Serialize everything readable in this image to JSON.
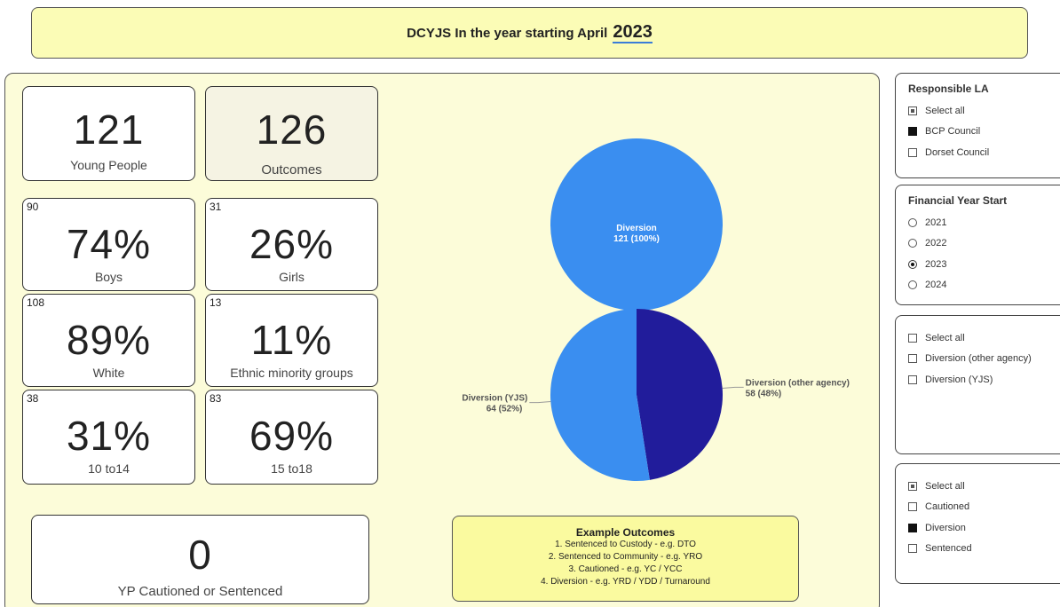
{
  "header": {
    "title": "DCYJS In the year starting April",
    "year": "2023"
  },
  "cards": [
    {
      "value": "121",
      "label": "Young People"
    },
    {
      "value": "126",
      "label": "Outcomes"
    }
  ],
  "split_cards": [
    {
      "count": "90",
      "percent": "74%",
      "label": "Boys"
    },
    {
      "count": "31",
      "percent": "26%",
      "label": "Girls"
    },
    {
      "count": "108",
      "percent": "89%",
      "label": "White"
    },
    {
      "count": "13",
      "percent": "11%",
      "label": "Ethnic minority groups"
    },
    {
      "count": "38",
      "percent": "31%",
      "label": "10 to14"
    },
    {
      "count": "83",
      "percent": "69%",
      "label": "15 to18"
    }
  ],
  "bottom_card": {
    "value": "0",
    "label": "YP Cautioned or Sentenced"
  },
  "pies": [
    {
      "type": "pie",
      "categories": [
        "Diversion"
      ],
      "values": [
        121
      ],
      "value_labels": [
        "121 (100%)"
      ],
      "colors": [
        "#3a8ef0"
      ]
    },
    {
      "type": "pie",
      "categories": [
        "Diversion (other agency)",
        "Diversion (YJS)"
      ],
      "values": [
        58,
        64
      ],
      "value_labels": [
        "58 (48%)",
        "64 (52%)"
      ],
      "colors": [
        "#211c9b",
        "#3a8ef0"
      ]
    }
  ],
  "example_outcomes": {
    "title": "Example Outcomes",
    "items": [
      "1. Sentenced to Custody - e.g. DTO",
      "2. Sentenced to Community - e.g. YRO",
      "3. Cautioned - e.g. YC / YCC",
      "4. Diversion - e.g. YRD / YDD / Turnaround"
    ]
  },
  "slicers": [
    {
      "title": "Responsible LA",
      "kind": "checkbox",
      "items": [
        {
          "label": "Select all",
          "state": "partial"
        },
        {
          "label": "BCP Council",
          "state": "on"
        },
        {
          "label": "Dorset Council",
          "state": "off"
        }
      ]
    },
    {
      "title": "Financial Year Start",
      "kind": "radio",
      "items": [
        {
          "label": "2021",
          "state": "off"
        },
        {
          "label": "2022",
          "state": "off"
        },
        {
          "label": "2023",
          "state": "on"
        },
        {
          "label": "2024",
          "state": "off"
        }
      ]
    },
    {
      "kind": "checkbox",
      "items": [
        {
          "label": "Select all",
          "state": "off"
        },
        {
          "label": "Diversion (other agency)",
          "state": "off"
        },
        {
          "label": "Diversion (YJS)",
          "state": "off"
        }
      ]
    },
    {
      "kind": "checkbox",
      "items": [
        {
          "label": "Select all",
          "state": "partial"
        },
        {
          "label": "Cautioned",
          "state": "off"
        },
        {
          "label": "Diversion",
          "state": "on"
        },
        {
          "label": "Sentenced",
          "state": "off"
        }
      ]
    }
  ]
}
